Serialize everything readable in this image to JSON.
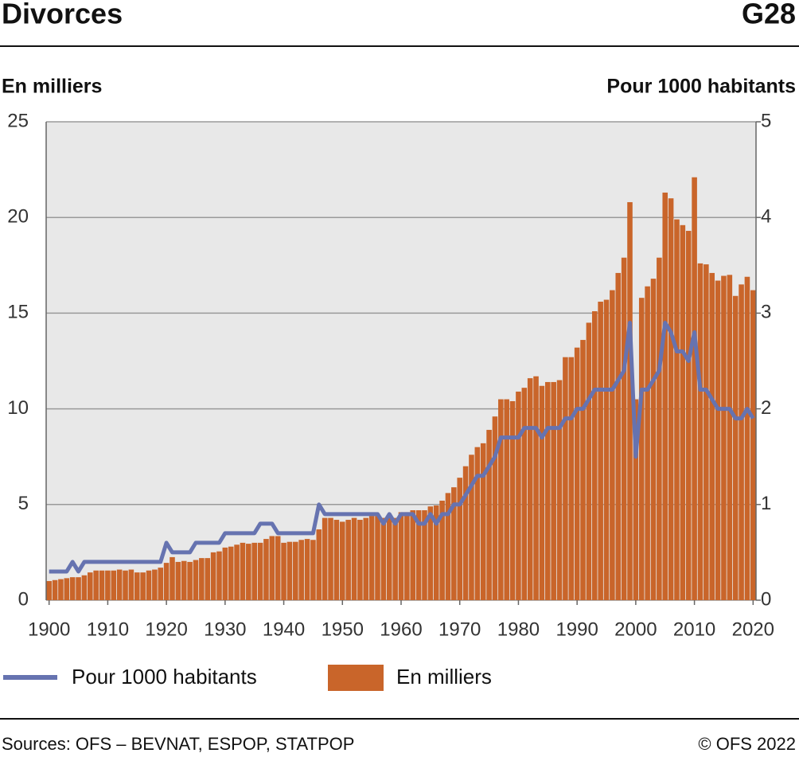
{
  "chart_data": {
    "type": "bar_line",
    "title": "Divorces",
    "code": "G28",
    "y_label": "En milliers",
    "y2_label": "Pour 1000 habitants",
    "source": "Sources: OFS – BEVNAT, ESPOP, STATPOP",
    "copyright": "© OFS 2022",
    "x": [
      1900,
      1901,
      1902,
      1903,
      1904,
      1905,
      1906,
      1907,
      1908,
      1909,
      1910,
      1911,
      1912,
      1913,
      1914,
      1915,
      1916,
      1917,
      1918,
      1919,
      1920,
      1921,
      1922,
      1923,
      1924,
      1925,
      1926,
      1927,
      1928,
      1929,
      1930,
      1931,
      1932,
      1933,
      1934,
      1935,
      1936,
      1937,
      1938,
      1939,
      1940,
      1941,
      1942,
      1943,
      1944,
      1945,
      1946,
      1947,
      1948,
      1949,
      1950,
      1951,
      1952,
      1953,
      1954,
      1955,
      1956,
      1957,
      1958,
      1959,
      1960,
      1961,
      1962,
      1963,
      1964,
      1965,
      1966,
      1967,
      1968,
      1969,
      1970,
      1971,
      1972,
      1973,
      1974,
      1975,
      1976,
      1977,
      1978,
      1979,
      1980,
      1981,
      1982,
      1983,
      1984,
      1985,
      1986,
      1987,
      1988,
      1989,
      1990,
      1991,
      1992,
      1993,
      1994,
      1995,
      1996,
      1997,
      1998,
      1999,
      2000,
      2001,
      2002,
      2003,
      2004,
      2005,
      2006,
      2007,
      2008,
      2009,
      2010,
      2011,
      2012,
      2013,
      2014,
      2015,
      2016,
      2017,
      2018,
      2019,
      2020
    ],
    "series": [
      {
        "name": "Pour 1000 habitants",
        "kind": "line",
        "axis": "y2",
        "color": "#6673b0",
        "values": [
          0.3,
          0.3,
          0.3,
          0.3,
          0.4,
          0.3,
          0.4,
          0.4,
          0.4,
          0.4,
          0.4,
          0.4,
          0.4,
          0.4,
          0.4,
          0.4,
          0.4,
          0.4,
          0.4,
          0.4,
          0.6,
          0.5,
          0.5,
          0.5,
          0.5,
          0.6,
          0.6,
          0.6,
          0.6,
          0.6,
          0.7,
          0.7,
          0.7,
          0.7,
          0.7,
          0.7,
          0.8,
          0.8,
          0.8,
          0.7,
          0.7,
          0.7,
          0.7,
          0.7,
          0.7,
          0.7,
          1.0,
          0.9,
          0.9,
          0.9,
          0.9,
          0.9,
          0.9,
          0.9,
          0.9,
          0.9,
          0.9,
          0.8,
          0.9,
          0.8,
          0.9,
          0.9,
          0.9,
          0.8,
          0.8,
          0.9,
          0.8,
          0.9,
          0.9,
          1.0,
          1.0,
          1.1,
          1.2,
          1.3,
          1.3,
          1.4,
          1.5,
          1.7,
          1.7,
          1.7,
          1.7,
          1.8,
          1.8,
          1.8,
          1.7,
          1.8,
          1.8,
          1.8,
          1.9,
          1.9,
          2.0,
          2.0,
          2.1,
          2.2,
          2.2,
          2.2,
          2.2,
          2.3,
          2.4,
          2.9,
          1.5,
          2.2,
          2.2,
          2.3,
          2.4,
          2.9,
          2.8,
          2.6,
          2.6,
          2.5,
          2.8,
          2.2,
          2.2,
          2.1,
          2.0,
          2.0,
          2.0,
          1.9,
          1.9,
          2.0,
          1.9
        ]
      },
      {
        "name": "En milliers",
        "kind": "bar",
        "axis": "y",
        "color": "#c9652a",
        "values": [
          1.0,
          1.05,
          1.1,
          1.15,
          1.2,
          1.2,
          1.3,
          1.45,
          1.55,
          1.55,
          1.55,
          1.55,
          1.6,
          1.55,
          1.6,
          1.45,
          1.45,
          1.55,
          1.6,
          1.7,
          1.95,
          2.25,
          2.0,
          2.05,
          2.0,
          2.1,
          2.2,
          2.2,
          2.5,
          2.55,
          2.75,
          2.8,
          2.9,
          3.0,
          2.95,
          3.0,
          3.0,
          3.2,
          3.35,
          3.35,
          3.0,
          3.05,
          3.05,
          3.15,
          3.2,
          3.15,
          3.7,
          4.3,
          4.3,
          4.2,
          4.1,
          4.2,
          4.3,
          4.2,
          4.3,
          4.4,
          4.4,
          4.3,
          4.45,
          4.3,
          4.6,
          4.6,
          4.7,
          4.7,
          4.7,
          4.9,
          4.95,
          5.2,
          5.6,
          5.9,
          6.4,
          7.0,
          7.6,
          8.0,
          8.2,
          8.9,
          9.6,
          10.5,
          10.5,
          10.4,
          10.9,
          11.1,
          11.6,
          11.7,
          11.2,
          11.4,
          11.4,
          11.5,
          12.7,
          12.7,
          13.2,
          13.6,
          14.5,
          15.1,
          15.6,
          15.7,
          16.2,
          17.1,
          17.9,
          20.8,
          10.5,
          15.8,
          16.4,
          16.8,
          17.9,
          21.3,
          21.0,
          19.9,
          19.6,
          19.3,
          22.1,
          17.6,
          17.55,
          17.1,
          16.7,
          16.95,
          17.0,
          15.9,
          16.5,
          16.9,
          16.2
        ]
      }
    ],
    "xlim": [
      1899.5,
      2020.5
    ],
    "xticks": [
      1900,
      1910,
      1920,
      1930,
      1940,
      1950,
      1960,
      1970,
      1980,
      1990,
      2000,
      2010,
      2020
    ],
    "ylim": [
      0,
      25
    ],
    "yticks": [
      0,
      5,
      10,
      15,
      20,
      25
    ],
    "y2lim": [
      0,
      5
    ],
    "y2ticks": [
      0,
      1,
      2,
      3,
      4,
      5
    ],
    "grid": true
  }
}
